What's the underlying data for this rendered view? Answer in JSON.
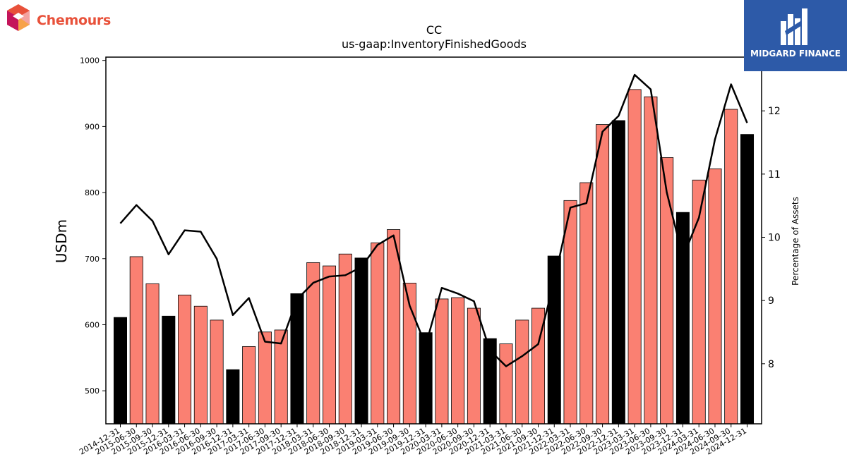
{
  "logos": {
    "left_brand": "Chemours",
    "right_brand": "MIDGARD FINANCE"
  },
  "chart_data": {
    "type": "bar",
    "title": "CC",
    "subtitle": "us-gaap:InventoryFinishedGoods",
    "ylabel": "USDm",
    "y2label": "Percentage of Assets",
    "ylim": [
      450,
      1005
    ],
    "y2lim": [
      7.05,
      12.85
    ],
    "yticks": [
      500,
      600,
      700,
      800,
      900,
      1000
    ],
    "y2ticks": [
      8,
      9,
      10,
      11,
      12
    ],
    "categories": [
      "2014-12-31",
      "2015-06-30",
      "2015-09-30",
      "2015-12-31",
      "2016-03-31",
      "2016-06-30",
      "2016-09-30",
      "2016-12-31",
      "2017-03-31",
      "2017-06-30",
      "2017-09-30",
      "2017-12-31",
      "2018-03-31",
      "2018-06-30",
      "2018-09-30",
      "2018-12-31",
      "2019-03-31",
      "2019-06-30",
      "2019-09-30",
      "2019-12-31",
      "2020-03-31",
      "2020-06-30",
      "2020-09-30",
      "2020-12-31",
      "2021-03-31",
      "2021-06-30",
      "2021-09-30",
      "2021-12-31",
      "2022-03-31",
      "2022-06-30",
      "2022-09-30",
      "2022-12-31",
      "2023-03-31",
      "2023-06-30",
      "2023-09-30",
      "2023-12-31",
      "2024-03-31",
      "2024-06-30",
      "2024-09-30",
      "2024-12-31"
    ],
    "series": [
      {
        "kind": "bar",
        "values": [
          611,
          703,
          662,
          613,
          645,
          628,
          607,
          532,
          567,
          589,
          592,
          647,
          694,
          689,
          707,
          701,
          724,
          744,
          663,
          588,
          639,
          641,
          625,
          579,
          571,
          607,
          625,
          704,
          788,
          815,
          903,
          909,
          956,
          945,
          853,
          770,
          819,
          836,
          926,
          888
        ],
        "highlight": [
          true,
          false,
          false,
          true,
          false,
          false,
          false,
          true,
          false,
          false,
          false,
          true,
          false,
          false,
          false,
          true,
          false,
          false,
          false,
          true,
          false,
          false,
          false,
          true,
          false,
          false,
          false,
          true,
          false,
          false,
          false,
          true,
          false,
          false,
          false,
          true,
          false,
          false,
          false,
          true
        ]
      },
      {
        "kind": "line",
        "axis": "right",
        "values": [
          10.22,
          10.51,
          10.26,
          9.73,
          10.11,
          10.09,
          9.66,
          8.77,
          9.04,
          8.35,
          8.32,
          9.02,
          9.28,
          9.38,
          9.4,
          9.53,
          9.88,
          10.03,
          8.92,
          8.29,
          9.2,
          9.11,
          8.99,
          8.21,
          7.96,
          8.12,
          8.31,
          9.31,
          10.47,
          10.54,
          11.67,
          11.92,
          12.57,
          12.34,
          10.71,
          9.68,
          10.31,
          11.55,
          12.42,
          11.81
        ]
      }
    ],
    "colors": {
      "bar": "#fa8072",
      "bar_highlight": "#000000",
      "bar_edge": "#000000",
      "line": "#000000"
    }
  }
}
